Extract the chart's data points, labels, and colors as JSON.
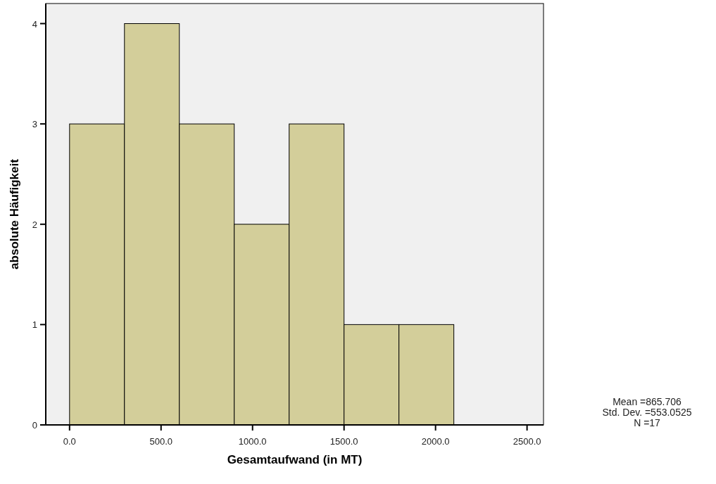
{
  "chart_data": {
    "type": "histogram",
    "xlabel": "Gesamtaufwand (in MT)",
    "ylabel": "absolute Häufigkeit",
    "bins": [
      0,
      300,
      600,
      900,
      1200,
      1500,
      1800,
      2100
    ],
    "values": [
      3,
      4,
      3,
      2,
      3,
      1,
      1
    ],
    "color": "#d3ce9a",
    "xlim": [
      -130,
      2590
    ],
    "xticks": [
      {
        "value": 0,
        "label": "0.0"
      },
      {
        "value": 500,
        "label": "500.0"
      },
      {
        "value": 1000,
        "label": "1000.0"
      },
      {
        "value": 1500,
        "label": "1500.0"
      },
      {
        "value": 2000,
        "label": "2000.0"
      },
      {
        "value": 2500,
        "label": "2500.0"
      }
    ],
    "ylim": [
      0,
      4.2
    ],
    "yticks": [
      0,
      1,
      2,
      3,
      4
    ],
    "annotations": [
      "Mean =865.706",
      "Std. Dev. =553.0525",
      "N =17"
    ]
  }
}
